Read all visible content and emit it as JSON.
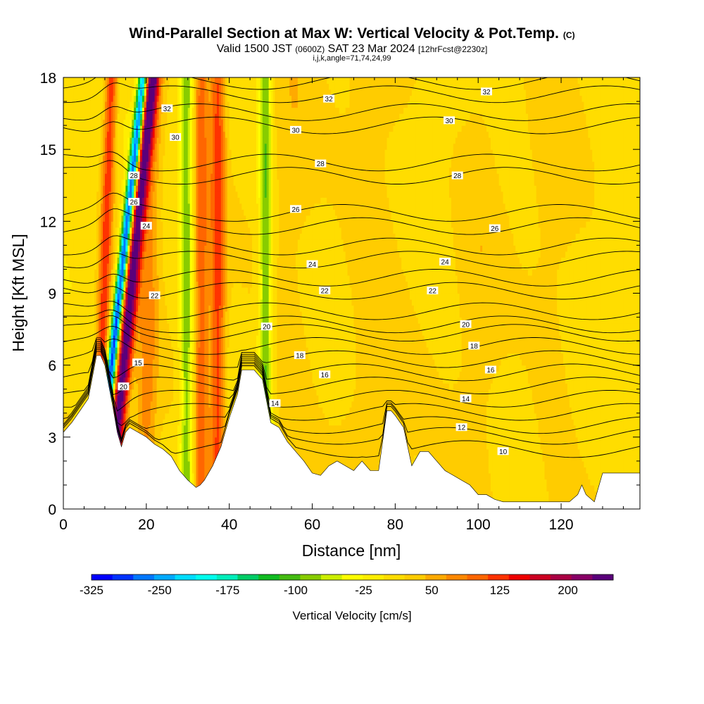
{
  "header": {
    "title": "Wind-Parallel Section at Max W: Vertical Velocity & Pot.Temp.",
    "copyright": "(C)",
    "valid_prefix": "Valid 1500 JST",
    "valid_utc": "(0600Z)",
    "valid_date": "SAT 23 Mar 2024",
    "forecast": "[12hrFcst@2230z]",
    "indices": "i,j,k,angle=71,74,24,99"
  },
  "chart_data": {
    "type": "heatmap",
    "xlabel": "Distance [nm]",
    "ylabel": "Height [Kft MSL]",
    "xlim": [
      0,
      139
    ],
    "ylim": [
      0,
      18
    ],
    "x_ticks": [
      "0",
      "20",
      "40",
      "60",
      "80",
      "100",
      "120"
    ],
    "x_tick_values": [
      0,
      20,
      40,
      60,
      80,
      100,
      120
    ],
    "y_ticks": [
      "0",
      "3",
      "6",
      "9",
      "12",
      "15",
      "18"
    ],
    "y_tick_values": [
      0,
      3,
      6,
      9,
      12,
      15,
      18
    ],
    "colorbar": {
      "label": "Vertical Velocity [cm/s]",
      "min": -325,
      "max": 250,
      "tick_labels": [
        "-325",
        "-250",
        "-175",
        "-100",
        "-25",
        "50",
        "125",
        "200"
      ],
      "tick_values": [
        -325,
        -250,
        -175,
        -100,
        -25,
        50,
        125,
        200
      ],
      "colors": [
        "#0000ff",
        "#0033ff",
        "#0077ff",
        "#00aaff",
        "#00ddff",
        "#00ffee",
        "#00eebb",
        "#00cc66",
        "#11bb22",
        "#44bb11",
        "#88cc00",
        "#ccee00",
        "#ffff00",
        "#ffee00",
        "#ffdd00",
        "#ffcc00",
        "#ffaa00",
        "#ff8800",
        "#ff6600",
        "#ff3300",
        "#ee0000",
        "#cc0022",
        "#aa0044",
        "#880066",
        "#5a007a"
      ]
    },
    "terrain_profile": {
      "x": [
        0,
        2,
        4,
        6,
        8,
        9,
        10,
        11,
        12,
        13,
        14,
        15,
        16,
        18,
        20,
        22,
        24,
        26,
        28,
        30,
        32,
        33,
        34,
        36,
        38,
        40,
        42,
        43,
        44,
        46,
        48,
        49,
        50,
        52,
        54,
        56,
        58,
        60,
        62,
        64,
        66,
        68,
        70,
        72,
        74,
        76,
        78,
        79,
        80,
        82,
        84,
        86,
        88,
        90,
        92,
        94,
        96,
        98,
        100,
        102,
        104,
        106,
        108,
        110,
        112,
        114,
        116,
        118,
        120,
        122,
        124,
        125,
        126,
        128,
        130,
        132,
        134,
        136,
        139
      ],
      "y": [
        3.2,
        3.6,
        4.1,
        4.6,
        6.4,
        6.4,
        6.0,
        5.1,
        4.2,
        3.2,
        2.6,
        3.2,
        3.4,
        3.2,
        3.0,
        2.7,
        2.5,
        2.2,
        1.6,
        1.2,
        0.9,
        1.0,
        1.2,
        1.8,
        2.6,
        3.8,
        4.8,
        5.8,
        5.8,
        5.8,
        5.4,
        4.5,
        3.6,
        3.4,
        2.8,
        2.4,
        2.0,
        1.5,
        1.4,
        1.8,
        2.0,
        1.8,
        1.6,
        2.0,
        1.6,
        1.6,
        4.1,
        4.1,
        3.9,
        3.4,
        1.8,
        2.4,
        2.4,
        2.0,
        1.6,
        1.4,
        1.2,
        1.0,
        0.6,
        0.6,
        0.4,
        0.3,
        0.3,
        0.3,
        0.3,
        0.3,
        0.3,
        0.3,
        0.3,
        0.3,
        0.6,
        1.0,
        0.6,
        0.3,
        1.5,
        1.5,
        1.5,
        1.5,
        1.5
      ]
    },
    "vertical_velocity_bands": [
      {
        "x": 11.5,
        "w": 1.2,
        "v": -325,
        "tilt": 0.16
      },
      {
        "x": 14.3,
        "w": 1.8,
        "v": 240,
        "tilt": 0.14
      },
      {
        "x": 9.0,
        "w": 1.5,
        "v": 120,
        "tilt": 0.05
      },
      {
        "x": 20.0,
        "w": 2.5,
        "v": 60,
        "tilt": 0.03
      },
      {
        "x": 29.5,
        "w": 1.6,
        "v": -100,
        "tilt": 0.0
      },
      {
        "x": 33.0,
        "w": 1.8,
        "v": 90,
        "tilt": 0.0
      },
      {
        "x": 37.0,
        "w": 1.8,
        "v": 110,
        "tilt": 0.0
      },
      {
        "x": 48.5,
        "w": 1.5,
        "v": -110,
        "tilt": 0.0
      },
      {
        "x": 55.0,
        "w": 6.0,
        "v": 20,
        "tilt": 0.0
      },
      {
        "x": 75.0,
        "w": 8.0,
        "v": 25,
        "tilt": 0.0
      },
      {
        "x": 100.0,
        "w": 6.0,
        "v": 20,
        "tilt": 0.0
      },
      {
        "x": 118.0,
        "w": 6.0,
        "v": 18,
        "tilt": 0.0
      }
    ],
    "isentropes": [
      {
        "level": 10,
        "y": 2.5
      },
      {
        "level": 12,
        "y": 3.5
      },
      {
        "level": 14,
        "y": 4.6
      },
      {
        "level": 16,
        "y": 5.7
      },
      {
        "level": 18,
        "y": 6.8
      },
      {
        "level": 20,
        "y": 7.7
      },
      {
        "level": 22,
        "y": 9.1
      },
      {
        "level": 24,
        "y": 10.4
      },
      {
        "level": 26,
        "y": 11.8
      },
      {
        "level": 28,
        "y": 13.9
      },
      {
        "level": 30,
        "y": 16.0
      },
      {
        "level": 32,
        "y": 17.3
      }
    ],
    "contour_labels": [
      {
        "text": "32",
        "x": 25,
        "y": 16.7
      },
      {
        "text": "32",
        "x": 64,
        "y": 17.1
      },
      {
        "text": "32",
        "x": 102,
        "y": 17.4
      },
      {
        "text": "30",
        "x": 27,
        "y": 15.5
      },
      {
        "text": "30",
        "x": 56,
        "y": 15.8
      },
      {
        "text": "30",
        "x": 93,
        "y": 16.2
      },
      {
        "text": "28",
        "x": 17,
        "y": 13.9
      },
      {
        "text": "28",
        "x": 62,
        "y": 14.4
      },
      {
        "text": "28",
        "x": 95,
        "y": 13.9
      },
      {
        "text": "26",
        "x": 17,
        "y": 12.8
      },
      {
        "text": "26",
        "x": 56,
        "y": 12.5
      },
      {
        "text": "26",
        "x": 104,
        "y": 11.7
      },
      {
        "text": "24",
        "x": 20,
        "y": 11.8
      },
      {
        "text": "24",
        "x": 60,
        "y": 10.2
      },
      {
        "text": "24",
        "x": 92,
        "y": 10.3
      },
      {
        "text": "22",
        "x": 22,
        "y": 8.9
      },
      {
        "text": "22",
        "x": 63,
        "y": 9.1
      },
      {
        "text": "22",
        "x": 89,
        "y": 9.1
      },
      {
        "text": "20",
        "x": 49,
        "y": 7.6
      },
      {
        "text": "20",
        "x": 97,
        "y": 7.7
      },
      {
        "text": "18",
        "x": 57,
        "y": 6.4
      },
      {
        "text": "18",
        "x": 99,
        "y": 6.8
      },
      {
        "text": "16",
        "x": 63,
        "y": 5.6
      },
      {
        "text": "16",
        "x": 103,
        "y": 5.8
      },
      {
        "text": "15",
        "x": 18,
        "y": 6.1
      },
      {
        "text": "20",
        "x": 14.5,
        "y": 5.1
      },
      {
        "text": "14",
        "x": 51,
        "y": 4.4
      },
      {
        "text": "14",
        "x": 97,
        "y": 4.6
      },
      {
        "text": "12",
        "x": 96,
        "y": 3.4
      },
      {
        "text": "10",
        "x": 106,
        "y": 2.4
      }
    ]
  }
}
